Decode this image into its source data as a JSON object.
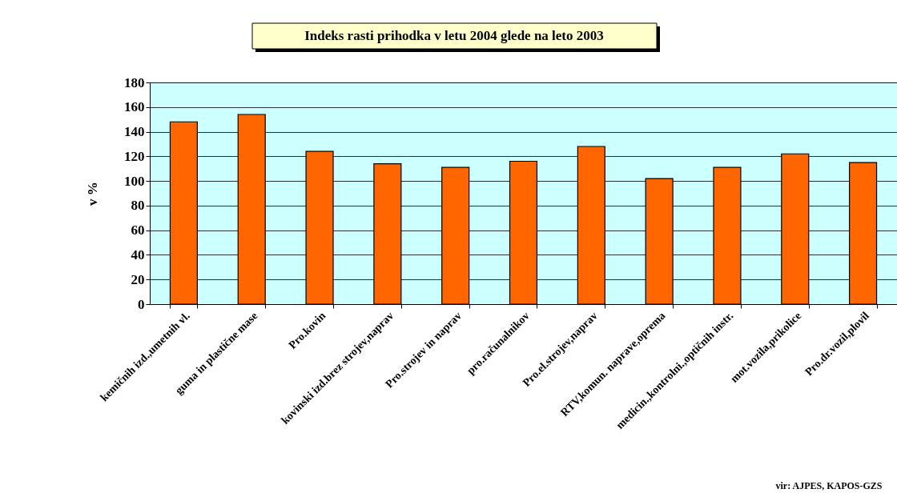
{
  "chart_data": {
    "type": "bar",
    "title": "Indeks rasti prihodka v letu 2004 glede na leto 2003",
    "ylabel": "v %",
    "categories": [
      "kemičnih izd.,umetnih vl.",
      "guma in plastične mase",
      "Pro.kovin",
      "kovinski izd.brez strojev,naprav",
      "Pro.strojev in naprav",
      "pro.računalnikov",
      "Pro.el.strojev,naprav",
      "RTV,komun. naprave,oprema",
      "medicin.,kontrolni.,optičnih instr.",
      "mot.vozila,prikolice",
      "Pro.dr.vozil,plovil"
    ],
    "values": [
      148,
      154,
      124,
      114,
      111,
      116,
      128,
      102,
      111,
      122,
      115
    ],
    "color": "#ff6600",
    "ylim": [
      0,
      180
    ],
    "yticks": [
      0,
      20,
      40,
      60,
      80,
      100,
      120,
      140,
      160,
      180
    ],
    "grid": "y",
    "annotations": [
      "vir: AJPES, KAPOS-GZS"
    ]
  }
}
